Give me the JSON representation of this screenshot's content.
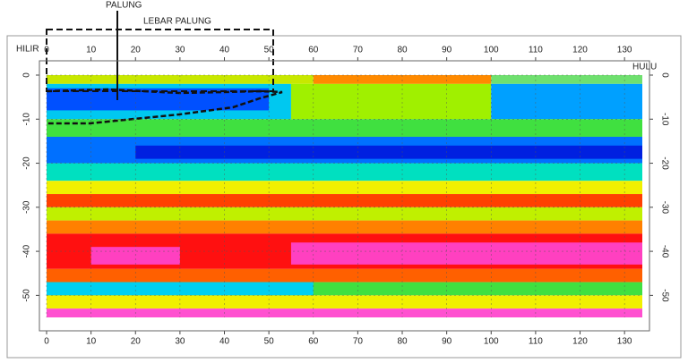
{
  "chart_data": {
    "type": "contour-section",
    "annotations": {
      "hilir": "HILIR",
      "hulu": "HULU",
      "palung": "PALUNG",
      "lebar_palung": "LEBAR PALUNG"
    },
    "xlim": [
      0,
      134
    ],
    "ylim": [
      -55,
      0
    ],
    "xticks": [
      0,
      10,
      20,
      30,
      40,
      50,
      60,
      70,
      80,
      90,
      100,
      110,
      120,
      130
    ],
    "yticks": [
      0,
      -10,
      -20,
      -30,
      -40,
      -50
    ],
    "grid": true,
    "cells": [
      {
        "x": [
          0,
          60
        ],
        "y": [
          -2,
          0
        ],
        "color": "#c8e800"
      },
      {
        "x": [
          60,
          100
        ],
        "y": [
          -2,
          0
        ],
        "color": "#ff8a00"
      },
      {
        "x": [
          100,
          134
        ],
        "y": [
          -2,
          0
        ],
        "color": "#6fe06f"
      },
      {
        "x": [
          0,
          55
        ],
        "y": [
          -10,
          -2
        ],
        "color": "#00c8f0"
      },
      {
        "x": [
          55,
          100
        ],
        "y": [
          -10,
          -2
        ],
        "color": "#a0f000"
      },
      {
        "x": [
          100,
          134
        ],
        "y": [
          -10,
          -2
        ],
        "color": "#00a0ff"
      },
      {
        "x": [
          0,
          50
        ],
        "y": [
          -8,
          -3
        ],
        "color": "#0050ff"
      },
      {
        "x": [
          0,
          134
        ],
        "y": [
          -14,
          -10
        ],
        "color": "#40e040"
      },
      {
        "x": [
          0,
          134
        ],
        "y": [
          -20,
          -14
        ],
        "color": "#0070ff"
      },
      {
        "x": [
          20,
          134
        ],
        "y": [
          -19,
          -16
        ],
        "color": "#0020e0"
      },
      {
        "x": [
          0,
          134
        ],
        "y": [
          -24,
          -20
        ],
        "color": "#00e0c0"
      },
      {
        "x": [
          0,
          134
        ],
        "y": [
          -27,
          -24
        ],
        "color": "#f0f000"
      },
      {
        "x": [
          0,
          134
        ],
        "y": [
          -30,
          -27
        ],
        "color": "#ff4000"
      },
      {
        "x": [
          0,
          134
        ],
        "y": [
          -33,
          -30
        ],
        "color": "#c0f000"
      },
      {
        "x": [
          0,
          134
        ],
        "y": [
          -36,
          -33
        ],
        "color": "#ff8000"
      },
      {
        "x": [
          0,
          134
        ],
        "y": [
          -44,
          -36
        ],
        "color": "#ff1010"
      },
      {
        "x": [
          55,
          134
        ],
        "y": [
          -43,
          -38
        ],
        "color": "#ff40c0"
      },
      {
        "x": [
          10,
          30
        ],
        "y": [
          -43,
          -39
        ],
        "color": "#ff40c0"
      },
      {
        "x": [
          0,
          134
        ],
        "y": [
          -47,
          -44
        ],
        "color": "#ff6000"
      },
      {
        "x": [
          0,
          134
        ],
        "y": [
          -50,
          -47
        ],
        "color": "#40e040"
      },
      {
        "x": [
          0,
          60
        ],
        "y": [
          -50,
          -47
        ],
        "color": "#00d0f0"
      },
      {
        "x": [
          0,
          134
        ],
        "y": [
          -53,
          -50
        ],
        "color": "#f0f000"
      },
      {
        "x": [
          0,
          134
        ],
        "y": [
          -55,
          -53
        ],
        "color": "#ff50d0"
      }
    ]
  }
}
